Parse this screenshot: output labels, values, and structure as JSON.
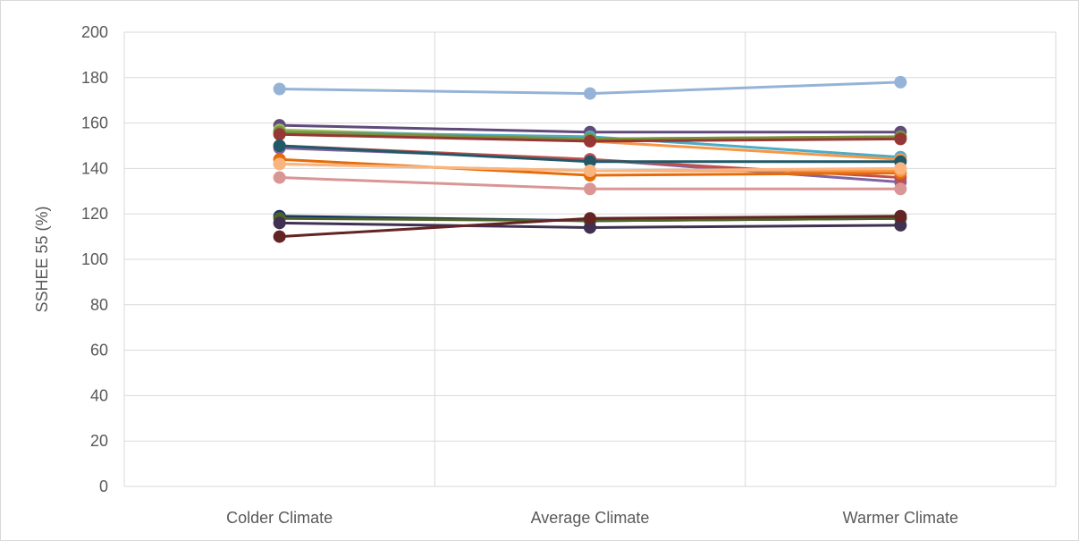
{
  "chart_data": {
    "type": "line",
    "title": "",
    "xlabel": "",
    "ylabel": "SSHEE 55 (%)",
    "categories": [
      "Colder Climate",
      "Average Climate",
      "Warmer Climate"
    ],
    "ylim": [
      0,
      200
    ],
    "yticks": [
      0,
      20,
      40,
      60,
      80,
      100,
      120,
      140,
      160,
      180,
      200
    ],
    "grid": true,
    "legend": "none",
    "series": [
      {
        "color": "#95b3d7",
        "values": [
          175,
          173,
          178
        ]
      },
      {
        "color": "#604a7b",
        "values": [
          159,
          156,
          156
        ]
      },
      {
        "color": "#9bbb59",
        "values": [
          157,
          153,
          154
        ]
      },
      {
        "color": "#4bacc6",
        "values": [
          156,
          154,
          145
        ]
      },
      {
        "color": "#f79646",
        "values": [
          156,
          152,
          144
        ]
      },
      {
        "color": "#77933c",
        "values": [
          156,
          153,
          154
        ]
      },
      {
        "color": "#953735",
        "values": [
          155,
          152,
          153
        ]
      },
      {
        "color": "#8064a2",
        "values": [
          149,
          144,
          134
        ]
      },
      {
        "color": "#c0504d",
        "values": [
          150,
          144,
          136
        ]
      },
      {
        "color": "#215968",
        "values": [
          150,
          143,
          143
        ]
      },
      {
        "color": "#e46c0a",
        "values": [
          144,
          137,
          138
        ]
      },
      {
        "color": "#f79646",
        "values": [
          142,
          139,
          139
        ]
      },
      {
        "color": "#fab57f",
        "values": [
          142,
          139,
          140
        ]
      },
      {
        "color": "#d99694",
        "values": [
          136,
          131,
          131
        ]
      },
      {
        "color": "#17375e",
        "values": [
          119,
          117,
          118
        ]
      },
      {
        "color": "#4f6228",
        "values": [
          118,
          117,
          118
        ]
      },
      {
        "color": "#403152",
        "values": [
          116,
          114,
          115
        ]
      },
      {
        "color": "#632423",
        "values": [
          110,
          118,
          119
        ]
      }
    ]
  }
}
